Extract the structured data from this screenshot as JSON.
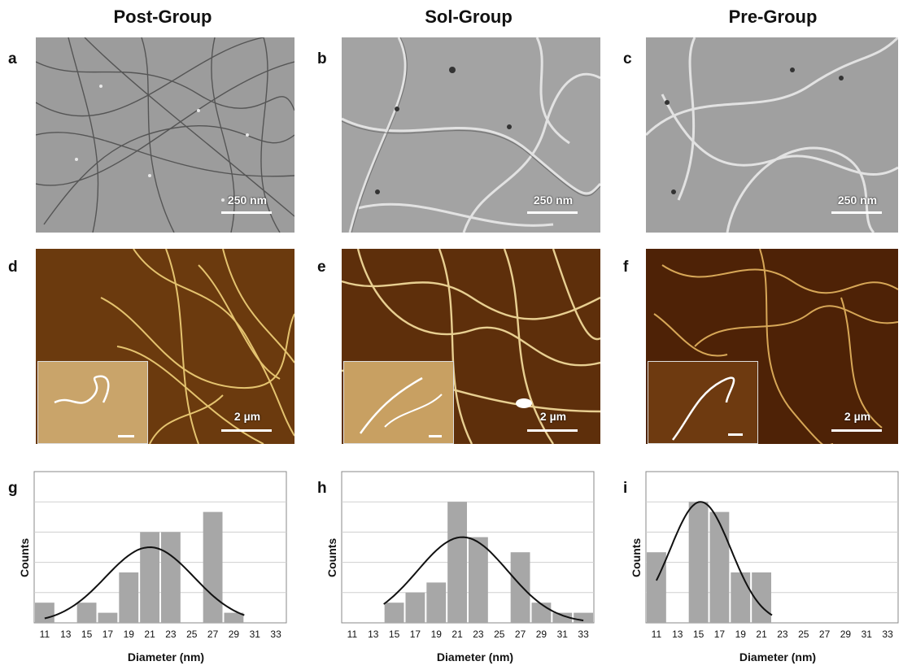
{
  "columns": [
    {
      "title": "Post-Group"
    },
    {
      "title": "Sol-Group"
    },
    {
      "title": "Pre-Group"
    }
  ],
  "panel_labels": [
    "a",
    "b",
    "c",
    "d",
    "e",
    "f",
    "g",
    "h",
    "i"
  ],
  "tem_scale": "250 nm",
  "afm_scale": "2 µm",
  "colors": {
    "tem_bg": "#9c9c9c",
    "afm_bg": "#5a2a08",
    "fiber_afm": "#f2d27a",
    "bar": "#a7a7a7",
    "fit": "#111111"
  },
  "chart_data": [
    {
      "type": "bar",
      "panel": "g",
      "xlabel": "Diameter (nm)",
      "ylabel": "Counts",
      "categories": [
        "11",
        "13",
        "15",
        "17",
        "19",
        "21",
        "23",
        "25",
        "27",
        "29",
        "31",
        "33"
      ],
      "values": [
        2,
        0,
        2,
        1,
        5,
        9,
        9,
        0,
        11,
        1,
        0,
        0
      ],
      "ylim": [
        0,
        15
      ],
      "grid": true,
      "fit_curve": {
        "type": "gaussian",
        "mean": 21,
        "sd": 4.2,
        "peak": 7.5,
        "xrange": [
          11,
          30
        ]
      }
    },
    {
      "type": "bar",
      "panel": "h",
      "xlabel": "Diameter (nm)",
      "ylabel": "Counts",
      "categories": [
        "11",
        "13",
        "15",
        "17",
        "19",
        "21",
        "23",
        "25",
        "27",
        "29",
        "31",
        "33"
      ],
      "values": [
        0,
        0,
        2,
        3,
        4,
        12,
        8.5,
        0,
        7,
        2,
        1,
        1
      ],
      "ylim": [
        0,
        15
      ],
      "grid": true,
      "fit_curve": {
        "type": "gaussian",
        "mean": 21.5,
        "sd": 4.3,
        "peak": 8.5,
        "xrange": [
          14,
          33
        ]
      }
    },
    {
      "type": "bar",
      "panel": "i",
      "xlabel": "Diameter (nm)",
      "ylabel": "Counts",
      "categories": [
        "11",
        "13",
        "15",
        "17",
        "19",
        "21",
        "23",
        "25",
        "27",
        "29",
        "31",
        "33"
      ],
      "values": [
        7,
        0,
        12,
        11,
        5,
        5,
        0,
        0,
        0,
        0,
        0,
        0
      ],
      "ylim": [
        0,
        15
      ],
      "grid": true,
      "fit_curve": {
        "type": "gaussian",
        "mean": 15.2,
        "sd": 2.9,
        "peak": 12,
        "xrange": [
          11,
          22
        ]
      }
    }
  ]
}
